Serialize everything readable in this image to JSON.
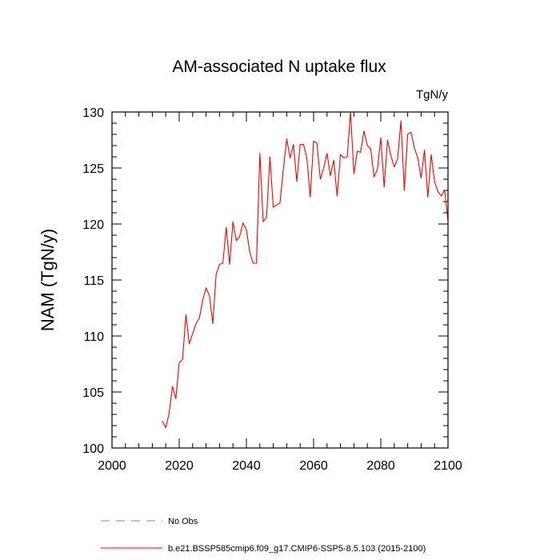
{
  "chart_data": {
    "type": "line",
    "title": "AM-associated N uptake flux",
    "units": "TgN/y",
    "xlabel": "",
    "ylabel": "NAM  (TgN/y)",
    "xlim": [
      2000,
      2100
    ],
    "ylim": [
      100,
      130
    ],
    "xticks": [
      2000,
      2020,
      2040,
      2060,
      2080,
      2100
    ],
    "yticks": [
      100,
      105,
      110,
      115,
      120,
      125,
      130
    ],
    "grid": false,
    "legend_position": "bottom-left",
    "series": [
      {
        "name": "No Obs",
        "color": "#7b7bd8",
        "style": "dashed",
        "x": [],
        "values": []
      },
      {
        "name": "b.e21.BSSP585cmip6.f09_g17.CMIP6-SSP5-8.5.103 (2015-2100)",
        "color": "#ff0000",
        "style": "solid",
        "x": [
          2015,
          2016,
          2017,
          2018,
          2019,
          2020,
          2021,
          2022,
          2023,
          2024,
          2025,
          2026,
          2027,
          2028,
          2029,
          2030,
          2031,
          2032,
          2033,
          2034,
          2035,
          2036,
          2037,
          2038,
          2039,
          2040,
          2041,
          2042,
          2043,
          2044,
          2045,
          2046,
          2047,
          2048,
          2049,
          2050,
          2051,
          2052,
          2053,
          2054,
          2055,
          2056,
          2057,
          2058,
          2059,
          2060,
          2061,
          2062,
          2063,
          2064,
          2065,
          2066,
          2067,
          2068,
          2069,
          2070,
          2071,
          2072,
          2073,
          2074,
          2075,
          2076,
          2077,
          2078,
          2079,
          2080,
          2081,
          2082,
          2083,
          2084,
          2085,
          2086,
          2087,
          2088,
          2089,
          2090,
          2091,
          2092,
          2093,
          2094,
          2095,
          2096,
          2097,
          2098,
          2099,
          2100
        ],
        "values": [
          102.4,
          101.8,
          103.1,
          105.5,
          104.4,
          107.6,
          107.9,
          111.9,
          109.3,
          110.2,
          111.1,
          111.6,
          113.2,
          114.3,
          113.6,
          111.1,
          115.5,
          116.4,
          116.5,
          119.7,
          116.4,
          120.2,
          118.5,
          118.9,
          120.1,
          119.5,
          117.5,
          116.5,
          116.5,
          126.3,
          120.2,
          120.6,
          126.0,
          121.5,
          121.7,
          121.9,
          124.9,
          127.6,
          125.9,
          127.1,
          123.8,
          127.1,
          127.1,
          125.9,
          122.4,
          127.4,
          127.2,
          124.0,
          125.0,
          126.3,
          124.3,
          125.7,
          122.5,
          126.2,
          125.9,
          126.0,
          130.0,
          124.5,
          126.5,
          126.4,
          128.3,
          127.0,
          126.7,
          124.2,
          124.9,
          127.7,
          123.3,
          127.5,
          126.1,
          125.1,
          125.8,
          129.2,
          123.0,
          128.0,
          128.2,
          126.8,
          125.9,
          124.1,
          126.6,
          122.4,
          126.2,
          123.8,
          122.9,
          122.5,
          123.0,
          120.3
        ]
      }
    ]
  }
}
